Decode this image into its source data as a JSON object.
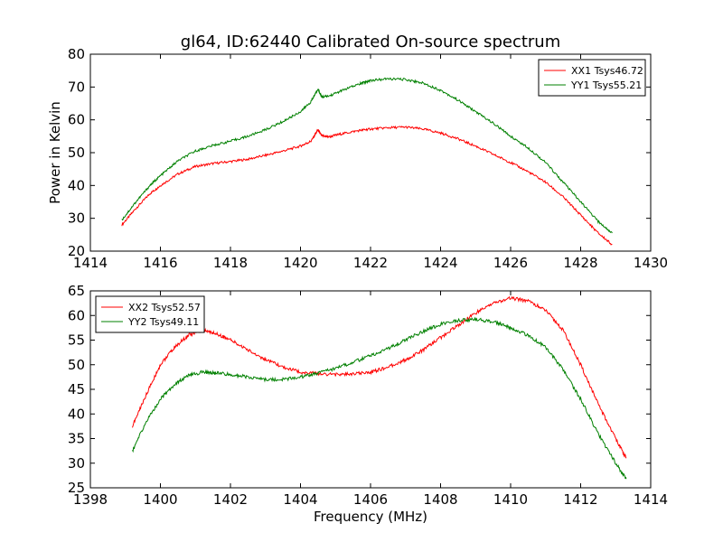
{
  "chart_data": [
    {
      "type": "line",
      "title": "gl64, ID:62440 Calibrated On-source spectrum",
      "xlabel": "",
      "ylabel": "Power in Kelvin",
      "xlim": [
        1414,
        1430
      ],
      "ylim": [
        20,
        80
      ],
      "xticks": [
        "1414",
        "1416",
        "1418",
        "1420",
        "1422",
        "1424",
        "1426",
        "1428",
        "1430"
      ],
      "yticks": [
        "20",
        "30",
        "40",
        "50",
        "60",
        "70",
        "80"
      ],
      "legend_position": "top-right",
      "series": [
        {
          "name": "XX1 Tsys46.72",
          "color": "#ff0000",
          "x": [
            1414.9,
            1415.3,
            1415.7,
            1416.0,
            1416.5,
            1417.0,
            1417.5,
            1418.0,
            1418.5,
            1419.0,
            1419.5,
            1420.0,
            1420.3,
            1420.5,
            1420.6,
            1420.8,
            1421.2,
            1421.7,
            1422.0,
            1422.5,
            1423.0,
            1423.5,
            1424.0,
            1424.5,
            1425.0,
            1425.5,
            1426.0,
            1426.5,
            1427.0,
            1427.5,
            1428.0,
            1428.5,
            1428.9
          ],
          "y": [
            28,
            33,
            37.5,
            40,
            43.5,
            45.8,
            46.7,
            47.3,
            48,
            49.2,
            50.5,
            52,
            53.5,
            57,
            55.2,
            54.8,
            55.8,
            56.8,
            57.2,
            57.6,
            57.8,
            57.2,
            56,
            54.2,
            52,
            49.5,
            47,
            44.2,
            41,
            36.5,
            31,
            25.5,
            22
          ]
        },
        {
          "name": "YY1 Tsys55.21",
          "color": "#008000",
          "x": [
            1414.9,
            1415.3,
            1415.7,
            1416.0,
            1416.5,
            1417.0,
            1417.5,
            1418.0,
            1418.5,
            1419.0,
            1419.5,
            1420.0,
            1420.3,
            1420.5,
            1420.6,
            1420.8,
            1421.2,
            1421.7,
            1422.0,
            1422.5,
            1423.0,
            1423.5,
            1424.0,
            1424.5,
            1425.0,
            1425.5,
            1426.0,
            1426.5,
            1427.0,
            1427.5,
            1428.0,
            1428.5,
            1428.9
          ],
          "y": [
            29.5,
            35,
            40,
            43,
            47.5,
            50.5,
            52.2,
            53.5,
            55,
            57,
            59.5,
            62.5,
            65.5,
            69.5,
            67,
            67.2,
            69,
            71,
            72,
            72.5,
            72.3,
            71.2,
            69,
            66,
            62.5,
            59,
            55,
            51.5,
            47,
            41,
            35,
            29,
            25.5
          ]
        }
      ]
    },
    {
      "type": "line",
      "title": "",
      "xlabel": "Frequency (MHz)",
      "ylabel": "",
      "xlim": [
        1398,
        1414
      ],
      "ylim": [
        25,
        65
      ],
      "xticks": [
        "1398",
        "1400",
        "1402",
        "1404",
        "1406",
        "1408",
        "1410",
        "1412",
        "1414"
      ],
      "yticks": [
        "25",
        "30",
        "35",
        "40",
        "45",
        "50",
        "55",
        "60",
        "65"
      ],
      "legend_position": "top-left",
      "series": [
        {
          "name": "XX2 Tsys52.57",
          "color": "#ff0000",
          "x": [
            1399.2,
            1399.6,
            1400.0,
            1400.4,
            1400.8,
            1401.2,
            1401.6,
            1402.0,
            1402.5,
            1403.0,
            1403.5,
            1404.0,
            1404.5,
            1405.0,
            1405.5,
            1406.0,
            1406.5,
            1407.0,
            1407.5,
            1408.0,
            1408.5,
            1409.0,
            1409.5,
            1410.0,
            1410.5,
            1411.0,
            1411.5,
            1412.0,
            1412.5,
            1413.0,
            1413.3
          ],
          "y": [
            37.5,
            44,
            50,
            53.5,
            56,
            57,
            56.3,
            55,
            53,
            51,
            49.5,
            48.5,
            48.2,
            48,
            48.1,
            48.5,
            49.5,
            51,
            53,
            55.5,
            58,
            60.5,
            62.5,
            63.5,
            63,
            61,
            57,
            50,
            42,
            35,
            31
          ]
        },
        {
          "name": "YY2 Tsys49.11",
          "color": "#008000",
          "x": [
            1399.2,
            1399.6,
            1400.0,
            1400.4,
            1400.8,
            1401.2,
            1401.6,
            1402.0,
            1402.5,
            1403.0,
            1403.5,
            1404.0,
            1404.5,
            1405.0,
            1405.5,
            1406.0,
            1406.5,
            1407.0,
            1407.5,
            1408.0,
            1408.5,
            1409.0,
            1409.5,
            1410.0,
            1410.5,
            1411.0,
            1411.5,
            1412.0,
            1412.5,
            1413.0,
            1413.3
          ],
          "y": [
            32.5,
            38.5,
            43,
            46,
            47.8,
            48.5,
            48.3,
            48,
            47.5,
            47,
            47,
            47.5,
            48.3,
            49.3,
            50.5,
            51.8,
            53.3,
            55,
            56.8,
            58.2,
            59,
            59.2,
            58.8,
            57.5,
            56,
            53.5,
            49,
            43,
            36,
            30,
            26.8
          ]
        }
      ]
    }
  ]
}
